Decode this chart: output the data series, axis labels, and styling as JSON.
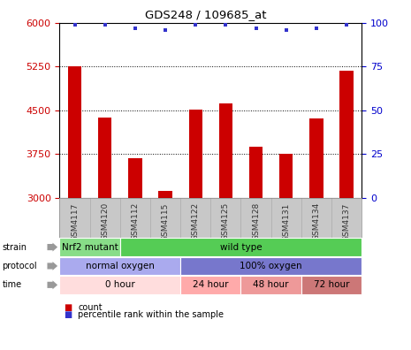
{
  "title": "GDS248 / 109685_at",
  "samples": [
    "GSM4117",
    "GSM4120",
    "GSM4112",
    "GSM4115",
    "GSM4122",
    "GSM4125",
    "GSM4128",
    "GSM4131",
    "GSM4134",
    "GSM4137"
  ],
  "counts": [
    5250,
    4380,
    3680,
    3120,
    4510,
    4620,
    3870,
    3760,
    4360,
    5180
  ],
  "percentiles": [
    99,
    99,
    97,
    96,
    99,
    99,
    97,
    96,
    97,
    99
  ],
  "ylim_left": [
    3000,
    6000
  ],
  "ylim_right": [
    0,
    100
  ],
  "yticks_left": [
    3000,
    3750,
    4500,
    5250,
    6000
  ],
  "yticks_right": [
    0,
    25,
    50,
    75,
    100
  ],
  "bar_color": "#cc0000",
  "dot_color": "#3333cc",
  "grid_color": "#000000",
  "strain_labels": [
    {
      "text": "Nrf2 mutant",
      "start": 0,
      "end": 2,
      "color": "#88dd88"
    },
    {
      "text": "wild type",
      "start": 2,
      "end": 10,
      "color": "#55cc55"
    }
  ],
  "protocol_labels": [
    {
      "text": "normal oxygen",
      "start": 0,
      "end": 4,
      "color": "#aaaaee"
    },
    {
      "text": "100% oxygen",
      "start": 4,
      "end": 10,
      "color": "#7777cc"
    }
  ],
  "time_labels": [
    {
      "text": "0 hour",
      "start": 0,
      "end": 4,
      "color": "#ffdddd"
    },
    {
      "text": "24 hour",
      "start": 4,
      "end": 6,
      "color": "#ffaaaa"
    },
    {
      "text": "48 hour",
      "start": 6,
      "end": 8,
      "color": "#ee9999"
    },
    {
      "text": "72 hour",
      "start": 8,
      "end": 10,
      "color": "#cc7777"
    }
  ],
  "legend_count_color": "#cc0000",
  "legend_dot_color": "#3333cc",
  "axis_color_left": "#cc0000",
  "axis_color_right": "#0000cc",
  "bg_color": "#ffffff",
  "tick_area_color": "#c8c8c8",
  "row_labels": [
    "strain",
    "protocol",
    "time"
  ],
  "row_arrow_color": "#999999"
}
